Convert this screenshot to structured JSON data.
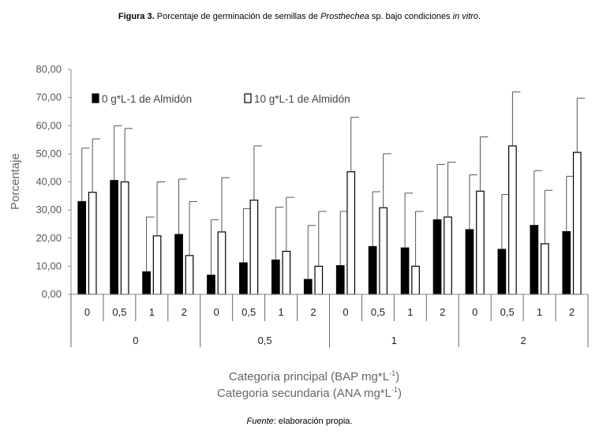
{
  "caption": {
    "label": "Figura 3.",
    "text_before": " Porcentaje de germinación de semillas de ",
    "species": "Prosthechea",
    "text_middle": " sp. bajo condiciones ",
    "condition": "in vitro",
    "text_end": "."
  },
  "source": {
    "label": "Fuente",
    "text": ": elaboración propia."
  },
  "chart_data": {
    "type": "bar",
    "ylabel": "Porcentaje",
    "xlabel_primary": "Categoria principal  (BAP mg*L",
    "xlabel_secondary": "Categoria secundaria  (ANA mg*L",
    "xlabel_sup": "-1",
    "xlabel_close": ")",
    "ylim": [
      0,
      80
    ],
    "yticks": [
      "0,00",
      "10,00",
      "20,00",
      "30,00",
      "40,00",
      "50,00",
      "60,00",
      "70,00",
      "80,00"
    ],
    "legend_position": "top-left",
    "primary_categories": [
      "0",
      "0,5",
      "1",
      "2"
    ],
    "secondary_categories": [
      "0",
      "0,5",
      "1",
      "2"
    ],
    "series": [
      {
        "name": "0 g*L-1 de Almidón",
        "fill": "#000000",
        "values": [
          33,
          40.5,
          8,
          21.3,
          6.8,
          11.2,
          12.2,
          5.3,
          10.2,
          17,
          16.5,
          26.5,
          23,
          16,
          24.5,
          22.3
        ],
        "error_upper": [
          52,
          60,
          27.5,
          41,
          26.5,
          30.5,
          31,
          24.5,
          29.5,
          36.5,
          36,
          46.2,
          42.5,
          35.5,
          44,
          42
        ]
      },
      {
        "name": "10 g*L-1 de Almidón",
        "fill": "#ffffff",
        "values": [
          36.3,
          40,
          20.8,
          13.8,
          22.2,
          33.5,
          15.3,
          10,
          43.6,
          30.8,
          10,
          27.5,
          36.7,
          52.8,
          18,
          50.5
        ],
        "error_upper": [
          55.3,
          59,
          40,
          33,
          41.5,
          52.8,
          34.5,
          29.5,
          63,
          50,
          29.5,
          47,
          56,
          72,
          37,
          69.8
        ]
      }
    ]
  }
}
